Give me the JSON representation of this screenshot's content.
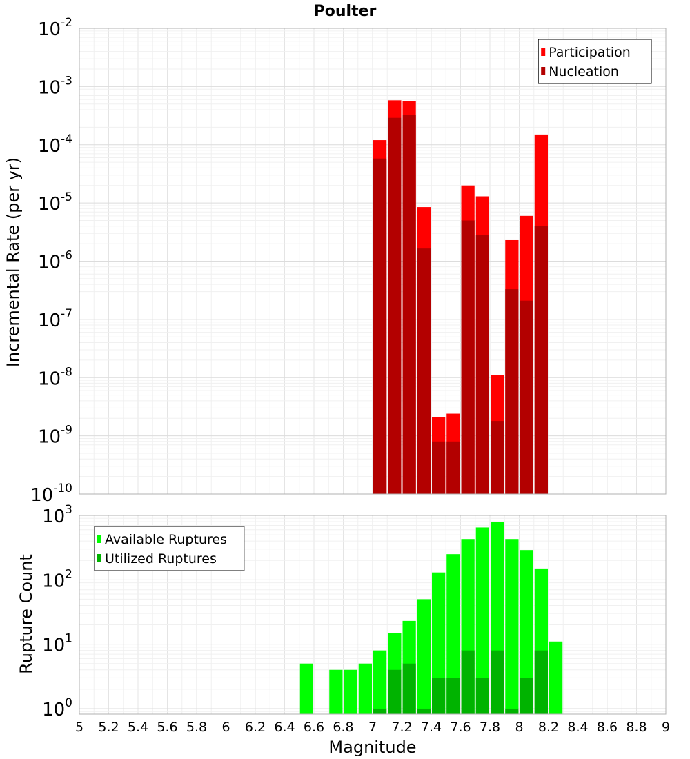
{
  "chart_data": [
    {
      "type": "bar",
      "title": "Poulter",
      "xlabel": "Magnitude",
      "ylabel": "Incremental Rate (per yr)",
      "yscale": "log",
      "ylim": [
        1e-10,
        0.01
      ],
      "xlim": [
        5,
        9
      ],
      "bin_width": 0.1,
      "grid": true,
      "legend_position": "top-right",
      "y_tick_exponents": [
        "-10",
        "-9",
        "-8",
        "-7",
        "-6",
        "-5",
        "-4",
        "-3",
        "-2"
      ],
      "series": [
        {
          "name": "Participation",
          "color": "#ff0000",
          "x": [
            7.05,
            7.15,
            7.25,
            7.35,
            7.45,
            7.55,
            7.65,
            7.75,
            7.85,
            7.95,
            8.05,
            8.15
          ],
          "values": [
            0.00012,
            0.00058,
            0.00056,
            8.5e-06,
            2.1e-09,
            2.4e-09,
            2e-05,
            1.3e-05,
            1.1e-08,
            2.3e-06,
            6e-06,
            0.00015
          ]
        },
        {
          "name": "Nucleation",
          "color": "#b30000",
          "x": [
            7.05,
            7.15,
            7.25,
            7.35,
            7.45,
            7.55,
            7.65,
            7.75,
            7.85,
            7.95,
            8.05,
            8.15
          ],
          "values": [
            5.8e-05,
            0.00029,
            0.00033,
            1.65e-06,
            8e-10,
            8e-10,
            5e-06,
            2.8e-06,
            1.8e-09,
            3.3e-07,
            2.1e-07,
            4e-06
          ]
        }
      ]
    },
    {
      "type": "bar",
      "xlabel": "Magnitude",
      "ylabel": "Rupture Count",
      "yscale": "log",
      "ylim": [
        0.82,
        1000
      ],
      "xlim": [
        5,
        9
      ],
      "bin_width": 0.1,
      "grid": true,
      "legend_position": "top-left",
      "x_ticks": [
        "5",
        "5.2",
        "5.4",
        "5.6",
        "5.8",
        "6",
        "6.2",
        "6.4",
        "6.6",
        "6.8",
        "7",
        "7.2",
        "7.4",
        "7.6",
        "7.8",
        "8",
        "8.2",
        "8.4",
        "8.6",
        "8.8",
        "9"
      ],
      "y_tick_exponents": [
        "0",
        "1",
        "2",
        "3"
      ],
      "series": [
        {
          "name": "Available Ruptures",
          "color": "#00ff00",
          "x": [
            6.55,
            6.75,
            6.85,
            6.95,
            7.05,
            7.15,
            7.25,
            7.35,
            7.45,
            7.55,
            7.65,
            7.75,
            7.85,
            7.95,
            8.05,
            8.15,
            8.25
          ],
          "values": [
            5,
            4,
            4,
            5,
            8,
            15,
            23,
            50,
            130,
            250,
            430,
            650,
            790,
            430,
            290,
            150,
            11
          ]
        },
        {
          "name": "Utilized Ruptures",
          "color": "#00b300",
          "x": [
            7.05,
            7.15,
            7.25,
            7.35,
            7.45,
            7.55,
            7.65,
            7.75,
            7.85,
            7.95,
            8.05,
            8.15
          ],
          "values": [
            1,
            4,
            5,
            1,
            3,
            3,
            8,
            3,
            8,
            1,
            3,
            8
          ]
        }
      ]
    }
  ]
}
